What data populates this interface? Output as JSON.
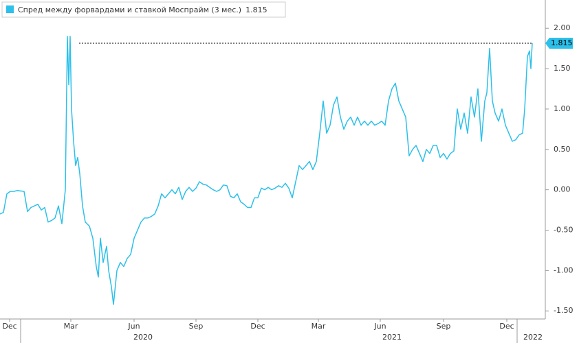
{
  "chart_data": {
    "type": "line",
    "legend_value_label": "1.815",
    "series": [
      {
        "name": "Спред между форвардами и ставкой Моспрайм (3 мес.)",
        "color": "#2cc0ea",
        "x": [
          0,
          5,
          10,
          15,
          20,
          25,
          35,
          40,
          45,
          55,
          60,
          65,
          70,
          75,
          80,
          85,
          90,
          95,
          98,
          100,
          102,
          104,
          107,
          110,
          113,
          116,
          120,
          124,
          130,
          135,
          140,
          143,
          146,
          150,
          155,
          158,
          162,
          165,
          170,
          175,
          180,
          185,
          190,
          195,
          200,
          205,
          210,
          215,
          220,
          225,
          230,
          235,
          240,
          245,
          250,
          255,
          260,
          265,
          270,
          275,
          280,
          285,
          290,
          295,
          300,
          305,
          310,
          315,
          320,
          325,
          330,
          335,
          340,
          345,
          350,
          355,
          360,
          365,
          370,
          375,
          380,
          385,
          390,
          395,
          400,
          405,
          410,
          415,
          420,
          425,
          430,
          435,
          440,
          445,
          450,
          455,
          460,
          465,
          470,
          475,
          480,
          485,
          490,
          495,
          500,
          505,
          510,
          515,
          520,
          525,
          530,
          535,
          540,
          545,
          550,
          555,
          560,
          565,
          570,
          575,
          580,
          585,
          590,
          595,
          600,
          605,
          610,
          615,
          620,
          625,
          630,
          635,
          640,
          645,
          650,
          655,
          660,
          665,
          670,
          675,
          680,
          685,
          690,
          695,
          700,
          705,
          708,
          712,
          716,
          720,
          725,
          730,
          735,
          740,
          745,
          750,
          755,
          760,
          763,
          767,
          770,
          772,
          774
        ],
        "values": [
          -0.3,
          -0.28,
          -0.05,
          -0.02,
          -0.02,
          -0.01,
          -0.02,
          -0.27,
          -0.22,
          -0.18,
          -0.25,
          -0.22,
          -0.4,
          -0.38,
          -0.35,
          -0.2,
          -0.42,
          0.0,
          1.9,
          1.3,
          1.9,
          1.0,
          0.6,
          0.3,
          0.4,
          0.2,
          -0.2,
          -0.4,
          -0.45,
          -0.6,
          -0.95,
          -1.08,
          -0.6,
          -0.9,
          -0.7,
          -1.0,
          -1.2,
          -1.42,
          -1.0,
          -0.9,
          -0.95,
          -0.85,
          -0.8,
          -0.6,
          -0.5,
          -0.4,
          -0.35,
          -0.35,
          -0.33,
          -0.3,
          -0.2,
          -0.05,
          -0.1,
          -0.05,
          0.0,
          -0.05,
          0.03,
          -0.12,
          -0.02,
          0.03,
          -0.02,
          0.02,
          0.1,
          0.07,
          0.06,
          0.03,
          0.0,
          -0.02,
          0.0,
          0.06,
          0.05,
          -0.08,
          -0.1,
          -0.05,
          -0.15,
          -0.18,
          -0.22,
          -0.22,
          -0.1,
          -0.1,
          0.02,
          0.0,
          0.03,
          0.0,
          0.02,
          0.05,
          0.03,
          0.08,
          0.02,
          -0.1,
          0.1,
          0.3,
          0.25,
          0.3,
          0.35,
          0.25,
          0.35,
          0.7,
          1.1,
          0.7,
          0.8,
          1.05,
          1.15,
          0.9,
          0.75,
          0.85,
          0.9,
          0.8,
          0.9,
          0.8,
          0.85,
          0.8,
          0.85,
          0.8,
          0.82,
          0.85,
          0.8,
          1.1,
          1.25,
          1.32,
          1.1,
          1.0,
          0.9,
          0.42,
          0.5,
          0.55,
          0.45,
          0.35,
          0.5,
          0.45,
          0.55,
          0.55,
          0.4,
          0.45,
          0.38,
          0.45,
          0.48,
          1.0,
          0.75,
          0.95,
          0.7,
          1.15,
          0.9,
          1.25,
          0.6,
          1.1,
          1.2,
          1.75,
          1.1,
          0.95,
          0.85,
          1.0,
          0.8,
          0.7,
          0.6,
          0.62,
          0.68,
          0.7,
          1.0,
          1.65,
          1.72,
          1.5,
          1.815
        ]
      }
    ],
    "xlim": [
      0,
      793
    ],
    "ylim": [
      -1.6,
      2.35
    ],
    "yticks": [
      {
        "value": 2,
        "label": "2.00"
      },
      {
        "value": 1.5,
        "label": "1.50"
      },
      {
        "value": 1,
        "label": "1.00"
      },
      {
        "value": 0.5,
        "label": "0.50"
      },
      {
        "value": 0,
        "label": "0.00"
      },
      {
        "value": -0.5,
        "label": "-0.50"
      },
      {
        "value": -1,
        "label": "-1.00"
      },
      {
        "value": -1.5,
        "label": "-1.50"
      }
    ],
    "xticks": [
      {
        "value": 14,
        "label": "Dec"
      },
      {
        "value": 103,
        "label": "Mar"
      },
      {
        "value": 195,
        "label": "Jun"
      },
      {
        "value": 285,
        "label": "Sep"
      },
      {
        "value": 375,
        "label": "Dec"
      },
      {
        "value": 463,
        "label": "Mar"
      },
      {
        "value": 553,
        "label": "Jun"
      },
      {
        "value": 645,
        "label": "Sep"
      },
      {
        "value": 737,
        "label": "Dec"
      }
    ],
    "year_ticks": [
      {
        "value": 208,
        "label": "2020"
      },
      {
        "value": 570,
        "label": "2021"
      },
      {
        "value": 775,
        "label": "2022"
      }
    ],
    "reference_line_start": 115
  }
}
